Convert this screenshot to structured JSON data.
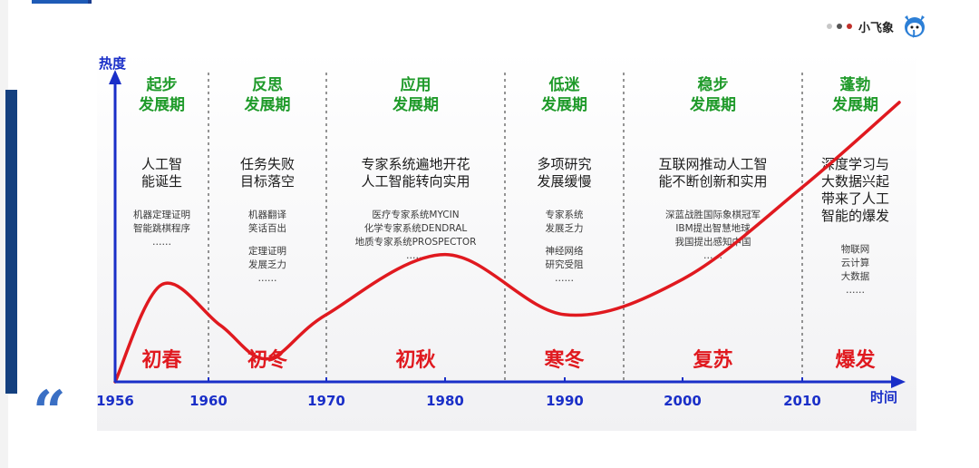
{
  "brand": {
    "name": "小飞象",
    "dot_colors": [
      "#c7c7c7",
      "#555555",
      "#c0302a"
    ]
  },
  "quote": "“",
  "chart_data": {
    "type": "line",
    "ylabel": "热度",
    "xlabel": "时间",
    "x_ticks": [
      "1956",
      "1960",
      "1970",
      "1980",
      "1990",
      "2000",
      "2010"
    ],
    "curve": [
      {
        "x": 1956,
        "y": 0
      },
      {
        "x": 1958,
        "y": 0.55
      },
      {
        "x": 1961,
        "y": 0.32
      },
      {
        "x": 1965,
        "y": 0.13
      },
      {
        "x": 1970,
        "y": 0.38
      },
      {
        "x": 1980,
        "y": 0.72
      },
      {
        "x": 1990,
        "y": 0.38
      },
      {
        "x": 2000,
        "y": 0.58
      },
      {
        "x": 2010,
        "y": 1.1
      },
      {
        "x": 2016,
        "y": 1.58
      }
    ],
    "boundaries": [
      1960,
      1970,
      1985,
      1995,
      2010
    ],
    "periods": [
      {
        "title1": "起步",
        "title2": "发展期",
        "headline": [
          "人工智",
          "能诞生"
        ],
        "details": [
          "机器定理证明",
          "智能跳棋程序",
          "……"
        ],
        "season": "初春"
      },
      {
        "title1": "反思",
        "title2": "发展期",
        "headline": [
          "任务失败",
          "目标落空"
        ],
        "details": [
          "机器翻译",
          "笑话百出",
          "定理证明",
          "发展乏力",
          "……"
        ],
        "season": "初冬"
      },
      {
        "title1": "应用",
        "title2": "发展期",
        "headline": [
          "专家系统遍地开花",
          "人工智能转向实用"
        ],
        "details": [
          "医疗专家系统MYCIN",
          "化学专家系统DENDRAL",
          "地质专家系统PROSPECTOR",
          "……"
        ],
        "season": "初秋"
      },
      {
        "title1": "低迷",
        "title2": "发展期",
        "headline": [
          "多项研究",
          "发展缓慢"
        ],
        "details": [
          "专家系统",
          "发展乏力",
          "神经网络",
          "研究受阻",
          "……"
        ],
        "season": "寒冬"
      },
      {
        "title1": "稳步",
        "title2": "发展期",
        "headline": [
          "互联网推动人工智",
          "能不断创新和实用"
        ],
        "details": [
          "深蓝战胜国际象棋冠军",
          "IBM提出智慧地球",
          "我国提出感知中国",
          "……"
        ],
        "season": "复苏"
      },
      {
        "title1": "蓬勃",
        "title2": "发展期",
        "headline": [
          "深度学习与",
          "大数据兴起",
          "带来了人工",
          "智能的爆发"
        ],
        "details": [
          "物联网",
          "云计算",
          "大数据",
          "……"
        ],
        "season": "爆发"
      }
    ],
    "colors": {
      "axis": "#1a2fc8",
      "curve": "#e0191f",
      "period_title": "#1f9a2a",
      "season": "#e0191f",
      "divider": "#7a7a7a",
      "headline": "#1b1b1b",
      "detail": "#3a3a3a"
    }
  }
}
